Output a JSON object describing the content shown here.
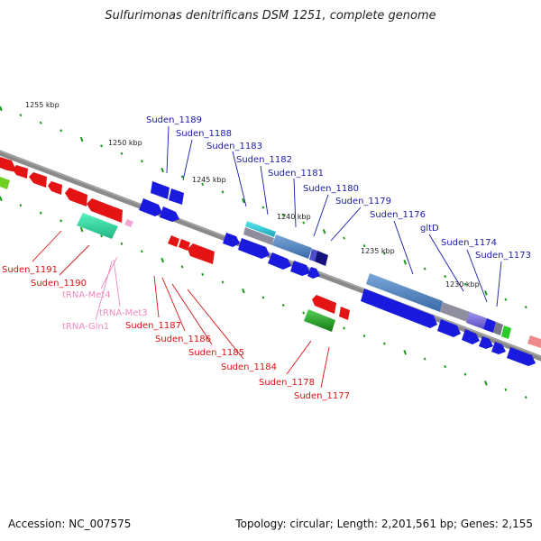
{
  "title": "Sulfurimonas denitrificans DSM 1251, complete genome",
  "accession": "Accession: NC_007575",
  "topology": "Topology: circular; Length: 2,201,561 bp; Genes: 2,155",
  "kbp_labels": [
    "1255 kbp",
    "1250 kbp",
    "1245 kbp",
    "1240 kbp",
    "1235 kbp",
    "1230 kbp"
  ],
  "colors": {
    "forward_cds": "#1a1adf",
    "reverse_cds": "#e41414",
    "rRNA": "#2fd8a0",
    "tRNA": "#f2a6d2",
    "rRNA_other": "#22a022",
    "backbone": "#888888",
    "tick": "#1a9a1a",
    "label_forward": "#1a1aaa",
    "label_reverse": "#dd1111",
    "label_trna": "#f08ac0"
  },
  "labels_forward": [
    "Suden_1189",
    "Suden_1188",
    "Suden_1183",
    "Suden_1182",
    "Suden_1181",
    "Suden_1180",
    "Suden_1179",
    "Suden_1176",
    "gltD",
    "Suden_1174",
    "Suden_1173"
  ],
  "labels_reverse": [
    "Suden_1191",
    "Suden_1190",
    "Suden_1187",
    "Suden_1186",
    "Suden_1185",
    "Suden_1184",
    "Suden_1178",
    "Suden_1177"
  ],
  "labels_trna": [
    "tRNA-Met4",
    "tRNA-Met3",
    "tRNA-Gln1"
  ]
}
